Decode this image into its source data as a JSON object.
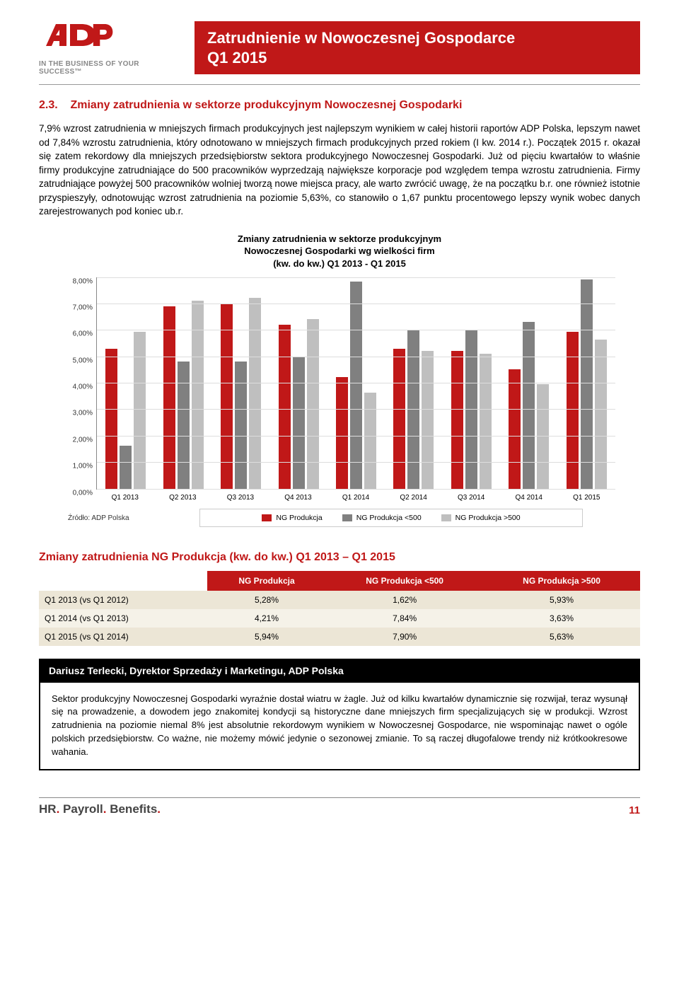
{
  "header": {
    "logo_letters": "ADP",
    "tagline": "IN THE BUSINESS OF YOUR SUCCESS™",
    "title_line1": "Zatrudnienie w Nowoczesnej Gospodarce",
    "title_line2": "Q1 2015"
  },
  "section": {
    "number": "2.3.",
    "title": "Zmiany zatrudnienia w sektorze produkcyjnym Nowoczesnej Gospodarki"
  },
  "paragraph": "7,9% wzrost zatrudnienia w mniejszych firmach produkcyjnych jest najlepszym wynikiem w całej historii raportów ADP Polska, lepszym nawet od 7,84% wzrostu zatrudnienia, który odnotowano w mniejszych firmach produkcyjnych przed rokiem (I kw. 2014 r.). Początek 2015 r. okazał się zatem rekordowy dla mniejszych przedsiębiorstw sektora produkcyjnego Nowoczesnej Gospodarki. Już od pięciu kwartałów to właśnie firmy produkcyjne zatrudniające do 500 pracowników wyprzedzają największe korporacje pod względem tempa wzrostu zatrudnienia. Firmy zatrudniające powyżej 500 pracowników wolniej tworzą nowe miejsca pracy, ale warto zwrócić uwagę, że na początku b.r. one również istotnie przyspieszyły, odnotowując wzrost zatrudnienia na poziomie 5,63%, co stanowiło o 1,67 punktu procentowego lepszy wynik wobec danych zarejestrowanych pod koniec ub.r.",
  "chart": {
    "title_line1": "Zmiany zatrudnienia w sektorze produkcyjnym",
    "title_line2": "Nowoczesnej Gospodarki wg wielkości firm",
    "title_line3": "(kw. do kw.) Q1 2013 - Q1 2015",
    "ymax": 8.0,
    "ytick_step": 1.0,
    "ytick_format_suffix": ",00%",
    "categories": [
      "Q1 2013",
      "Q2 2013",
      "Q3 2013",
      "Q4 2013",
      "Q1 2014",
      "Q2 2014",
      "Q3 2014",
      "Q4 2014",
      "Q1 2015"
    ],
    "series": [
      {
        "name": "NG Produkcja",
        "color": "#c01818",
        "values": [
          5.28,
          6.9,
          7.0,
          6.2,
          4.21,
          5.3,
          5.2,
          4.5,
          5.94
        ]
      },
      {
        "name": "NG Produkcja <500",
        "color": "#808080",
        "values": [
          1.62,
          4.8,
          4.8,
          5.0,
          7.84,
          6.0,
          6.0,
          6.3,
          7.9
        ]
      },
      {
        "name": "NG Produkcja >500",
        "color": "#bfbfbf",
        "values": [
          5.93,
          7.1,
          7.2,
          6.4,
          3.63,
          5.2,
          5.1,
          3.96,
          5.63
        ]
      }
    ],
    "source": "Źródło: ADP Polska",
    "background_color": "#ffffff",
    "grid_color": "#dddddd",
    "axis_color": "#888888",
    "label_fontsize": 10
  },
  "table": {
    "title": "Zmiany zatrudnienia NG Produkcja (kw. do kw.) Q1 2013 – Q1 2015",
    "columns": [
      "NG Produkcja",
      "NG Produkcja <500",
      "NG Produkcja >500"
    ],
    "rows": [
      {
        "label": "Q1 2013 (vs Q1 2012)",
        "values": [
          "5,28%",
          "1,62%",
          "5,93%"
        ]
      },
      {
        "label": "Q1 2014 (vs Q1 2013)",
        "values": [
          "4,21%",
          "7,84%",
          "3,63%"
        ]
      },
      {
        "label": "Q1 2015 (vs Q1 2014)",
        "values": [
          "5,94%",
          "7,90%",
          "5,63%"
        ]
      }
    ],
    "header_bg": "#c01818",
    "row_bg_a": "#ece6d6",
    "row_bg_b": "#f5f2e8"
  },
  "quote": {
    "author": "Dariusz Terlecki, Dyrektor Sprzedaży i Marketingu, ADP Polska",
    "text": "Sektor produkcyjny Nowoczesnej Gospodarki wyraźnie dostał wiatru w żagle. Już od kilku kwartałów dynamicznie się rozwijał, teraz wysunął się na prowadzenie, a dowodem jego znakomitej kondycji są historyczne dane mniejszych firm specjalizujących się w produkcji. Wzrost zatrudnienia na poziomie niemal 8% jest absolutnie rekordowym wynikiem w Nowoczesnej Gospodarce, nie wspominając nawet o ogóle polskich przedsiębiorstw. Co ważne, nie możemy mówić jedynie o sezonowej zmianie. To są raczej długofalowe trendy niż krótkookresowe wahania."
  },
  "footer": {
    "brand_hr": "HR",
    "brand_payroll": "Payroll",
    "brand_benefits": "Benefits",
    "page_number": "11"
  }
}
